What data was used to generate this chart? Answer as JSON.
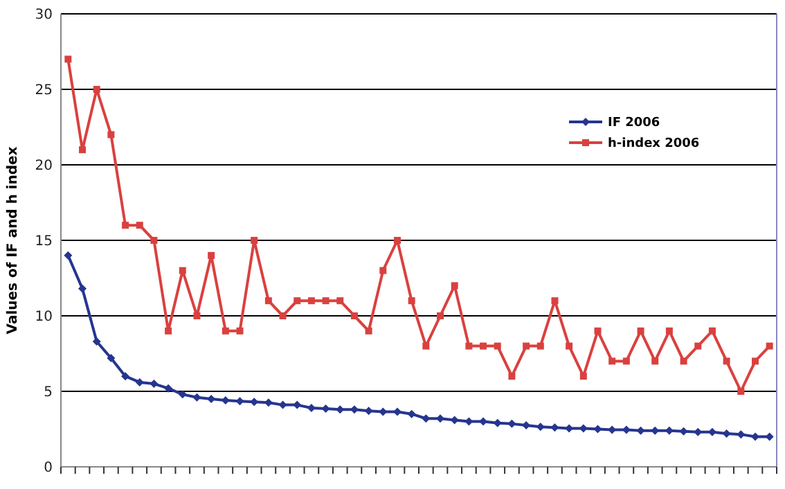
{
  "chart_data": {
    "type": "line",
    "ylabel": "Values of IF and h index",
    "categories": [
      null,
      null,
      null,
      null,
      null,
      null,
      null,
      null,
      null,
      null,
      null,
      null,
      null,
      null,
      null,
      null,
      null,
      null,
      null,
      null,
      null,
      null,
      null,
      null,
      null,
      null,
      null,
      null,
      null,
      null,
      null,
      null,
      null,
      null,
      null,
      null,
      null,
      null,
      null,
      null,
      null,
      null,
      null,
      null,
      null,
      null,
      null,
      null,
      null,
      null
    ],
    "series": [
      {
        "name": "IF 2006",
        "color": "#26358f",
        "marker": "diamond",
        "values": [
          14,
          11.8,
          8.3,
          7.2,
          6.0,
          5.6,
          5.5,
          5.2,
          4.8,
          4.6,
          4.5,
          4.4,
          4.35,
          4.3,
          4.25,
          4.1,
          4.1,
          3.9,
          3.85,
          3.8,
          3.8,
          3.7,
          3.65,
          3.65,
          3.5,
          3.2,
          3.2,
          3.1,
          3.0,
          3.0,
          2.9,
          2.85,
          2.75,
          2.65,
          2.6,
          2.55,
          2.55,
          2.5,
          2.45,
          2.45,
          2.4,
          2.4,
          2.4,
          2.35,
          2.3,
          2.3,
          2.2,
          2.15,
          2.0,
          2.0
        ]
      },
      {
        "name": "h-index 2006",
        "color": "#d9413f",
        "marker": "square",
        "values": [
          27,
          21,
          25,
          22,
          16,
          16,
          15,
          9,
          13,
          10,
          14,
          9,
          9,
          15,
          11,
          10,
          11,
          11,
          11,
          11,
          10,
          9,
          13,
          15,
          11,
          8,
          10,
          12,
          8,
          8,
          8,
          6,
          8,
          8,
          11,
          8,
          6,
          9,
          7,
          7,
          9,
          7,
          9,
          7,
          8,
          9,
          7,
          5,
          7,
          8
        ]
      }
    ],
    "ylim": [
      0,
      30
    ],
    "yticks": [
      0,
      5,
      10,
      15,
      20,
      25,
      30
    ],
    "grid": "y",
    "legend": "top right"
  }
}
